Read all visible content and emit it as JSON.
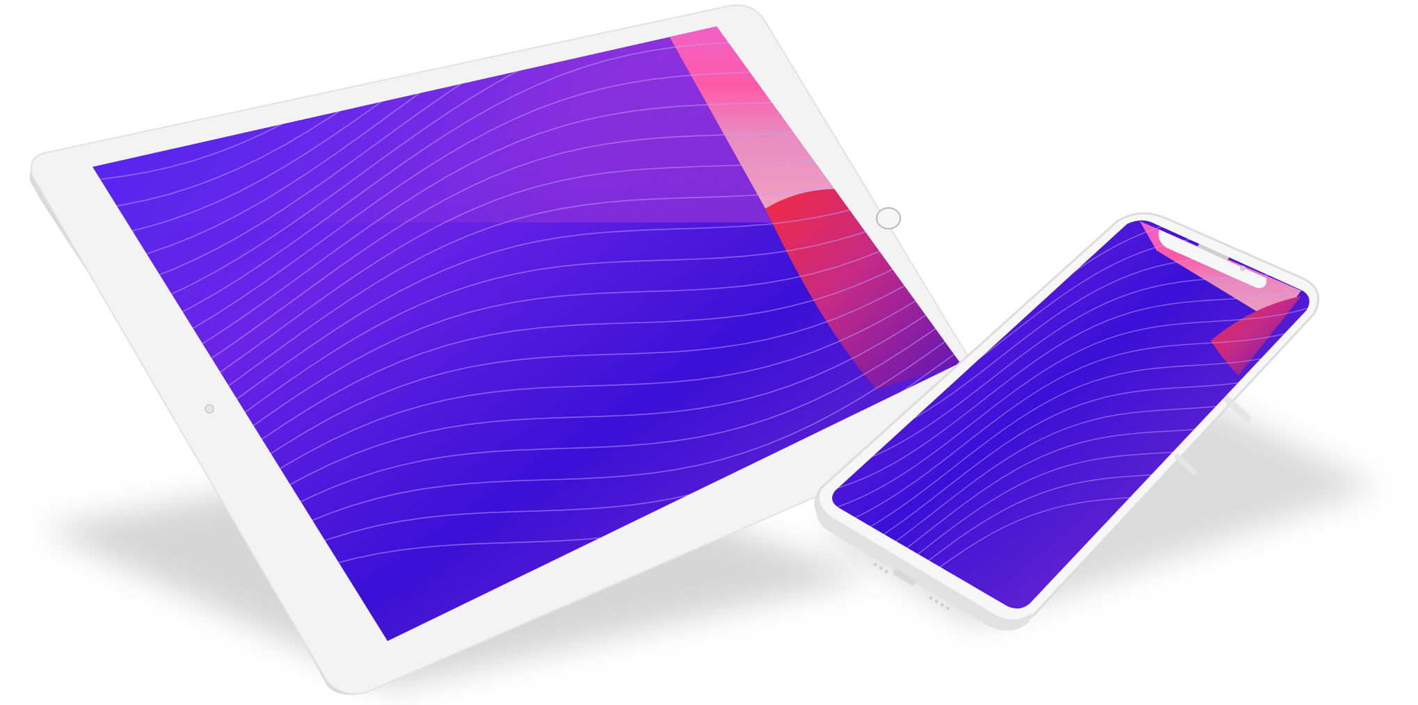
{
  "scene": {
    "background": "#ffffff",
    "devices": [
      {
        "kind": "tablet",
        "icon": "tablet-icon",
        "frame_color": "#f3f3f3",
        "edge_color": "#d9d9d9"
      },
      {
        "kind": "phone",
        "icon": "phone-icon",
        "frame_color": "#f7f7f7",
        "edge_color": "#dcdcdc"
      }
    ]
  },
  "wallpaper": {
    "colors": {
      "blue": "#3f1ff2",
      "indigo": "#3a10d6",
      "violet": "#7a2bd8",
      "purple": "#8e2fe6",
      "magenta": "#b23ed2",
      "pink": "#ff5aa8",
      "coral": "#ff3d6a",
      "red": "#f22a43",
      "line": "#c7a0ff"
    }
  }
}
